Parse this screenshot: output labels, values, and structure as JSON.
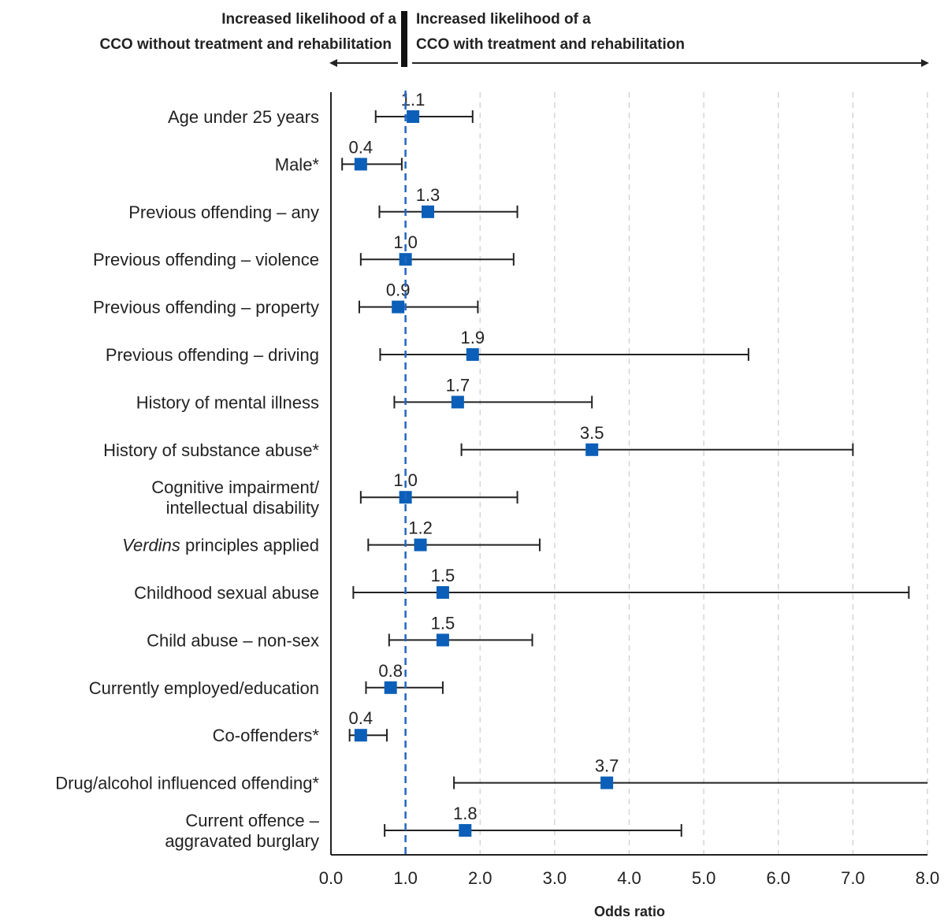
{
  "header": {
    "left_line1": "Increased likelihood of a",
    "left_line2": "CCO without treatment and rehabilitation",
    "right_line1": "Increased likelihood of a",
    "right_line2": "CCO with treatment and rehabilitation"
  },
  "colors": {
    "marker": "#0b5fb8",
    "reference_line": "#2266c4",
    "whisker": "#222222",
    "grid": "#cccccc",
    "axis": "#222222"
  },
  "chart_data": {
    "type": "forest",
    "xlabel": "Odds ratio",
    "xlim": [
      0,
      8
    ],
    "x_ticks": [
      "0.0",
      "1.0",
      "2.0",
      "3.0",
      "4.0",
      "5.0",
      "6.0",
      "7.0",
      "8.0"
    ],
    "reference_value": 1.0,
    "grid": "vertical dashed",
    "rows": [
      {
        "label_lines": [
          "Age under 25 years"
        ],
        "value": 1.1,
        "value_label": "1.1",
        "ci_low": 0.6,
        "ci_high": 1.9
      },
      {
        "label_lines": [
          "Male*"
        ],
        "value": 0.4,
        "value_label": "0.4",
        "ci_low": 0.15,
        "ci_high": 0.95
      },
      {
        "label_lines": [
          "Previous offending – any"
        ],
        "value": 1.3,
        "value_label": "1.3",
        "ci_low": 0.65,
        "ci_high": 2.5
      },
      {
        "label_lines": [
          "Previous offending – violence"
        ],
        "value": 1.0,
        "value_label": "1.0",
        "ci_low": 0.4,
        "ci_high": 2.45
      },
      {
        "label_lines": [
          "Previous offending – property"
        ],
        "value": 0.9,
        "value_label": "0.9",
        "ci_low": 0.38,
        "ci_high": 1.97
      },
      {
        "label_lines": [
          "Previous offending – driving"
        ],
        "value": 1.9,
        "value_label": "1.9",
        "ci_low": 0.66,
        "ci_high": 5.6
      },
      {
        "label_lines": [
          "History of mental illness"
        ],
        "value": 1.7,
        "value_label": "1.7",
        "ci_low": 0.85,
        "ci_high": 3.5
      },
      {
        "label_lines": [
          "History of substance abuse*"
        ],
        "value": 3.5,
        "value_label": "3.5",
        "ci_low": 1.75,
        "ci_high": 7.0
      },
      {
        "label_lines": [
          "Cognitive impairment/",
          "intellectual disability"
        ],
        "value": 1.0,
        "value_label": "1.0",
        "ci_low": 0.4,
        "ci_high": 2.5
      },
      {
        "label_lines": [
          "Verdins principles applied"
        ],
        "italic_prefix": "Verdins",
        "label_rest": " principles applied",
        "value": 1.2,
        "value_label": "1.2",
        "ci_low": 0.5,
        "ci_high": 2.8
      },
      {
        "label_lines": [
          "Childhood sexual abuse"
        ],
        "value": 1.5,
        "value_label": "1.5",
        "ci_low": 0.3,
        "ci_high": 7.75
      },
      {
        "label_lines": [
          "Child abuse – non-sex"
        ],
        "value": 1.5,
        "value_label": "1.5",
        "ci_low": 0.78,
        "ci_high": 2.7
      },
      {
        "label_lines": [
          "Currently employed/education"
        ],
        "value": 0.8,
        "value_label": "0.8",
        "ci_low": 0.47,
        "ci_high": 1.5
      },
      {
        "label_lines": [
          "Co-offenders*"
        ],
        "value": 0.4,
        "value_label": "0.4",
        "ci_low": 0.25,
        "ci_high": 0.75
      },
      {
        "label_lines": [
          "Drug/alcohol influenced offending*"
        ],
        "value": 3.7,
        "value_label": "3.7",
        "ci_low": 1.65,
        "ci_high": 8.0,
        "ci_high_truncated": true
      },
      {
        "label_lines": [
          "Current offence –",
          "aggravated burglary"
        ],
        "value": 1.8,
        "value_label": "1.8",
        "ci_low": 0.72,
        "ci_high": 4.7
      }
    ]
  }
}
